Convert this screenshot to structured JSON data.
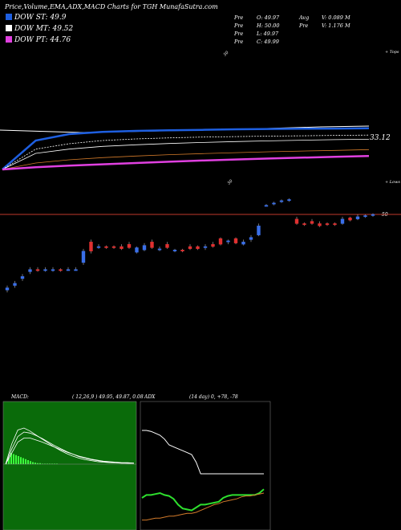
{
  "header": {
    "title": "Price,Volume,EMA,ADX,MACD Charts for TGH MunafaSutra.com"
  },
  "legend": [
    {
      "label": "DOW ST: 49.9",
      "color": "#1e5fe0"
    },
    {
      "label": "DOW MT: 49.52",
      "color": "#ffffff"
    },
    {
      "label": "DOW PT: 44.76",
      "color": "#e040e0"
    }
  ],
  "stats": {
    "left": [
      {
        "k": "Pre",
        "v": "O: 49.97"
      },
      {
        "k": "Pre",
        "v": "H: 50.00"
      },
      {
        "k": "Pre",
        "v": "L: 49.97"
      },
      {
        "k": "Pre",
        "v": "C: 49.99"
      }
    ],
    "right": [
      {
        "k": "Avg",
        "v": "V: 0.089 M"
      },
      {
        "k": "Pre",
        "v": "V: 1.176 M"
      }
    ]
  },
  "labels": {
    "tick_top": "50",
    "tick_mid": "50",
    "upper_right": "+ Tops",
    "lower_right": "+ Lows",
    "ema_value": "33.12",
    "price_value": "50"
  },
  "macd": {
    "label": "MACD:",
    "values": "( 12,26,9 ) 49.95, 49.87, 0.08"
  },
  "adx": {
    "label": "ADX",
    "values": "(14 day) 0, +78, -78"
  },
  "colors": {
    "bull": "#3a6fe8",
    "bear": "#e03030",
    "macd_bg": "#0a6b0a",
    "adx_pos": "#2ee02e",
    "adx_neg": "#d27a2a"
  },
  "chart_data": [
    {
      "type": "line",
      "title": "EMA",
      "series": [
        {
          "values": [
            3,
            30,
            36,
            38,
            39,
            39.5,
            40,
            40.5,
            40.8,
            41,
            41.2,
            41.5
          ]
        },
        {
          "values": [
            3,
            22,
            27,
            30,
            31.5,
            32.5,
            33.2,
            33.7,
            34.1,
            34.4,
            34.8,
            35.1
          ]
        },
        {
          "values": [
            3,
            18,
            22,
            24.5,
            26,
            27.2,
            28.2,
            29,
            29.7,
            30.3,
            30.8,
            31.2
          ]
        },
        {
          "values": [
            3,
            9,
            12,
            14,
            15.5,
            16.8,
            17.8,
            18.7,
            19.5,
            20.2,
            20.8,
            21.5
          ]
        },
        {
          "values": [
            3,
            5,
            6.5,
            7.8,
            9,
            10.2,
            11.3,
            12.3,
            13.2,
            14,
            14.8,
            15.5
          ]
        }
      ]
    },
    {
      "type": "bar",
      "title": "Price candles",
      "candles": [
        {
          "o": 12,
          "c": 13,
          "h": 14,
          "l": 11,
          "d": "up"
        },
        {
          "o": 14,
          "c": 15,
          "h": 16,
          "l": 13,
          "d": "up"
        },
        {
          "o": 17,
          "c": 18,
          "h": 19,
          "l": 16,
          "d": "up"
        },
        {
          "o": 20,
          "c": 21,
          "h": 22,
          "l": 19,
          "d": "up"
        },
        {
          "o": 21,
          "c": 20.5,
          "h": 22,
          "l": 20,
          "d": "down"
        },
        {
          "o": 20.5,
          "c": 21,
          "h": 22,
          "l": 20,
          "d": "up"
        },
        {
          "o": 21,
          "c": 21,
          "h": 22,
          "l": 20,
          "d": "up"
        },
        {
          "o": 21,
          "c": 20.5,
          "h": 21.5,
          "l": 20,
          "d": "down"
        },
        {
          "o": 21,
          "c": 21,
          "h": 22,
          "l": 20.5,
          "d": "up"
        },
        {
          "o": 21,
          "c": 21,
          "h": 22,
          "l": 20.5,
          "d": "up"
        },
        {
          "o": 24,
          "c": 29,
          "h": 30,
          "l": 23,
          "d": "up"
        },
        {
          "o": 29,
          "c": 33,
          "h": 34,
          "l": 28,
          "d": "down"
        },
        {
          "o": 30.5,
          "c": 31,
          "h": 32,
          "l": 30,
          "d": "up"
        },
        {
          "o": 31,
          "c": 30.5,
          "h": 31.5,
          "l": 30,
          "d": "down"
        },
        {
          "o": 31,
          "c": 30.5,
          "h": 31.5,
          "l": 30,
          "d": "down"
        },
        {
          "o": 31,
          "c": 30,
          "h": 32,
          "l": 29.5,
          "d": "down"
        },
        {
          "o": 32,
          "c": 30.5,
          "h": 33,
          "l": 30,
          "d": "down"
        },
        {
          "o": 30.5,
          "c": 28.5,
          "h": 31,
          "l": 28,
          "d": "up"
        },
        {
          "o": 29.5,
          "c": 31.5,
          "h": 32.5,
          "l": 29,
          "d": "up"
        },
        {
          "o": 33,
          "c": 30.5,
          "h": 34,
          "l": 30,
          "d": "down"
        },
        {
          "o": 30,
          "c": 30,
          "h": 31,
          "l": 29,
          "d": "up"
        },
        {
          "o": 32,
          "c": 30.5,
          "h": 33,
          "l": 30,
          "d": "down"
        },
        {
          "o": 29.5,
          "c": 29,
          "h": 30,
          "l": 28.5,
          "d": "up"
        },
        {
          "o": 29.5,
          "c": 29,
          "h": 30,
          "l": 28.5,
          "d": "down"
        },
        {
          "o": 31,
          "c": 30,
          "h": 32,
          "l": 29.5,
          "d": "down"
        },
        {
          "o": 31,
          "c": 30,
          "h": 31.5,
          "l": 29.5,
          "d": "down"
        },
        {
          "o": 30.5,
          "c": 31,
          "h": 32,
          "l": 29.5,
          "d": "up"
        },
        {
          "o": 32,
          "c": 31,
          "h": 33,
          "l": 30.5,
          "d": "down"
        },
        {
          "o": 34.5,
          "c": 32,
          "h": 35,
          "l": 31.5,
          "d": "down"
        },
        {
          "o": 33,
          "c": 33.5,
          "h": 34,
          "l": 32,
          "d": "up"
        },
        {
          "o": 34.5,
          "c": 32.5,
          "h": 35,
          "l": 32,
          "d": "down"
        },
        {
          "o": 32,
          "c": 33,
          "h": 34,
          "l": 31.5,
          "d": "up"
        },
        {
          "o": 34,
          "c": 35,
          "h": 36,
          "l": 33,
          "d": "up"
        },
        {
          "o": 36,
          "c": 40,
          "h": 41,
          "l": 35.5,
          "d": "up"
        },
        {
          "o": 49,
          "c": 49,
          "h": 49.5,
          "l": 48.5,
          "d": "up"
        },
        {
          "o": 49.5,
          "c": 50,
          "h": 50.5,
          "l": 49,
          "d": "up"
        },
        {
          "o": 50.5,
          "c": 51,
          "h": 51.5,
          "l": 50,
          "d": "up"
        },
        {
          "o": 51,
          "c": 51.5,
          "h": 52,
          "l": 50.5,
          "d": "up"
        },
        {
          "o": 43,
          "c": 41,
          "h": 44,
          "l": 40.5,
          "d": "down"
        },
        {
          "o": 41,
          "c": 40.5,
          "h": 41.5,
          "l": 40,
          "d": "down"
        },
        {
          "o": 42,
          "c": 41,
          "h": 43,
          "l": 40.5,
          "d": "down"
        },
        {
          "o": 41,
          "c": 40,
          "h": 42,
          "l": 39.5,
          "d": "down"
        },
        {
          "o": 41,
          "c": 40.5,
          "h": 41.5,
          "l": 40,
          "d": "down"
        },
        {
          "o": 41,
          "c": 40.5,
          "h": 41.5,
          "l": 40,
          "d": "down"
        },
        {
          "o": 41,
          "c": 43,
          "h": 44,
          "l": 40.5,
          "d": "up"
        },
        {
          "o": 43.5,
          "c": 42.5,
          "h": 44,
          "l": 42,
          "d": "down"
        },
        {
          "o": 43,
          "c": 44,
          "h": 45,
          "l": 42.5,
          "d": "up"
        },
        {
          "o": 44,
          "c": 44.5,
          "h": 45,
          "l": 43.5,
          "d": "up"
        },
        {
          "o": 44.5,
          "c": 45,
          "h": 45.5,
          "l": 44,
          "d": "up"
        }
      ]
    },
    {
      "type": "area",
      "title": "MACD",
      "series": [
        {
          "values": [
            0,
            40,
            68,
            72,
            66,
            58,
            50,
            42,
            34,
            27,
            21,
            16,
            12,
            9,
            7,
            5,
            4,
            3,
            2.5,
            2,
            2,
            2
          ]
        },
        {
          "values": [
            0,
            30,
            55,
            64,
            62,
            57,
            51,
            44,
            37,
            31,
            25,
            20,
            15,
            12,
            9,
            7,
            5,
            4,
            3,
            2.5,
            2,
            2
          ]
        },
        {
          "values": [
            0,
            22,
            44,
            52,
            52,
            48,
            44,
            39,
            34,
            29,
            24,
            20,
            16,
            13,
            10,
            8,
            6,
            5,
            4,
            3,
            3,
            2
          ]
        }
      ],
      "histogram": [
        2,
        12,
        22,
        20,
        18,
        16,
        14,
        12,
        10,
        8,
        6,
        4,
        3,
        2,
        2,
        1,
        1,
        1,
        1,
        1,
        1,
        1
      ]
    },
    {
      "type": "line",
      "title": "ADX",
      "series": [
        {
          "values": [
            95,
            95,
            94,
            92,
            90,
            86,
            80,
            78,
            76,
            74,
            72,
            70,
            62,
            50,
            50,
            50,
            50,
            50,
            50,
            50,
            50,
            50,
            50,
            50,
            50,
            50,
            50,
            50
          ]
        },
        {
          "values": [
            25,
            28,
            28,
            29,
            30,
            28,
            27,
            24,
            18,
            14,
            13,
            12,
            15,
            18,
            18,
            19,
            20,
            21,
            25,
            27,
            28,
            28,
            28,
            28,
            28,
            28,
            30,
            34
          ]
        },
        {
          "values": [
            2,
            2,
            3,
            4,
            4,
            5,
            6,
            6,
            7,
            8,
            9,
            9,
            10,
            12,
            14,
            16,
            18,
            19,
            21,
            22,
            23,
            24,
            26,
            27,
            27,
            28,
            29,
            30
          ]
        }
      ]
    }
  ]
}
